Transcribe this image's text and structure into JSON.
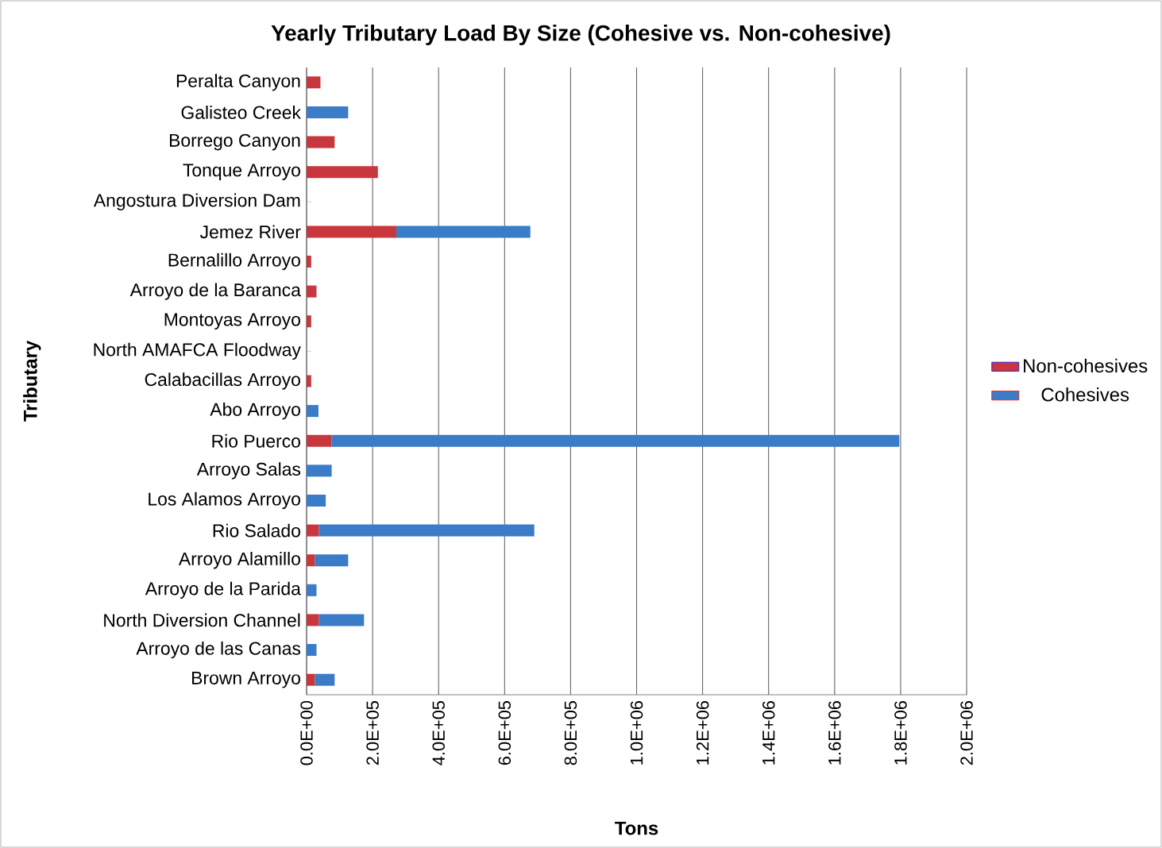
{
  "chart_data": {
    "type": "bar",
    "orientation": "horizontal",
    "stacked": true,
    "title": "Yearly Tributary Load By Size (Cohesive vs. Non-cohesive)",
    "xlabel": "Tons",
    "ylabel": "Tributary",
    "categories": [
      "Peralta Canyon",
      "Galisteo Creek",
      "Borrego Canyon",
      "Tonque Arroyo",
      "Angostura Diversion Dam",
      "Jemez River",
      "Bernalillo Arroyo",
      "Arroyo de la Baranca",
      "Montoyas Arroyo",
      "North AMAFCA Floodway",
      "Calabacillas Arroyo",
      "Abo Arroyo",
      "Rio Puerco",
      "Arroyo Salas",
      "Los Alamos Arroyo",
      "Rio Salado",
      "Arroyo Alamillo",
      "Arroyo de la Parida",
      "North Diversion Channel",
      "Arroyo de las Canas",
      "Brown Arroyo"
    ],
    "series": [
      {
        "name": "Non-cohesives",
        "color": "#c8373e",
        "values": [
          42000,
          null,
          85000,
          216000,
          null,
          272000,
          14000,
          30000,
          14000,
          null,
          14000,
          null,
          76000,
          null,
          null,
          37000,
          25000,
          null,
          37000,
          null,
          25000
        ]
      },
      {
        "name": "Cohesives",
        "color": "#3a7cc7",
        "values": [
          null,
          126000,
          null,
          null,
          null,
          406000,
          null,
          null,
          null,
          null,
          null,
          36000,
          1720000,
          76000,
          58000,
          653000,
          101000,
          30000,
          137000,
          30000,
          60000
        ]
      }
    ],
    "xlim": [
      0,
      2000000
    ],
    "xticks": [
      {
        "value": 0,
        "label": "0.0E+00"
      },
      {
        "value": 200000,
        "label": "2.0E+05"
      },
      {
        "value": 400000,
        "label": "4.0E+05"
      },
      {
        "value": 600000,
        "label": "6.0E+05"
      },
      {
        "value": 800000,
        "label": "8.0E+05"
      },
      {
        "value": 1000000,
        "label": "1.0E+06"
      },
      {
        "value": 1200000,
        "label": "1.2E+06"
      },
      {
        "value": 1400000,
        "label": "1.4E+06"
      },
      {
        "value": 1600000,
        "label": "1.6E+06"
      },
      {
        "value": 1800000,
        "label": "1.8E+06"
      },
      {
        "value": 2000000,
        "label": "2.0E+06"
      }
    ],
    "grid": "x",
    "legend": "right"
  }
}
